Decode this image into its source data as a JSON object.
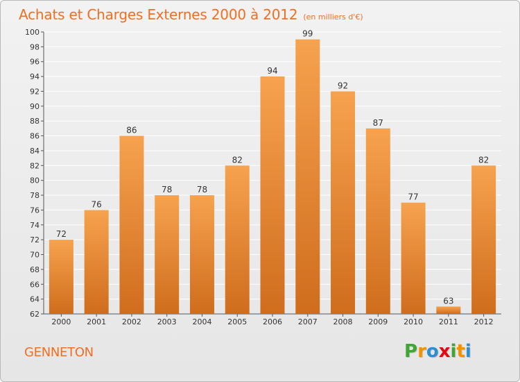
{
  "header": {
    "title": "Achats et Charges Externes 2000 à 2012",
    "subtitle": "(en milliers d'€)"
  },
  "footer": {
    "town": "GENNETON",
    "logo_text": "Proxiti",
    "logo_letters": [
      "P",
      "r",
      "o",
      "x",
      "i",
      "t",
      "i"
    ],
    "logo_colors": [
      "#3fa535",
      "#f39200",
      "#2e8fd0",
      "#e30613",
      "#3fa535",
      "#f39200",
      "#2e8fd0"
    ]
  },
  "colors": {
    "bar_light": "#f6a24e",
    "bar_dark": "#cf6d1d",
    "title": "#ef6f22",
    "grid": "#ffffff",
    "axis": "#555555",
    "text": "#333333"
  },
  "chart_data": {
    "type": "bar",
    "title": "Achats et Charges Externes 2000 à 2012",
    "subtitle": "(en milliers d'€)",
    "categories": [
      "2000",
      "2001",
      "2002",
      "2003",
      "2004",
      "2005",
      "2006",
      "2007",
      "2008",
      "2009",
      "2010",
      "2011",
      "2012"
    ],
    "values": [
      72,
      76,
      86,
      78,
      78,
      82,
      94,
      99,
      92,
      87,
      77,
      63,
      82
    ],
    "ylim": [
      62,
      100
    ],
    "yticks": [
      62,
      64,
      66,
      68,
      70,
      72,
      74,
      76,
      78,
      80,
      82,
      84,
      86,
      88,
      90,
      92,
      94,
      96,
      98,
      100
    ],
    "grid": true,
    "xlabel": "",
    "ylabel": ""
  }
}
